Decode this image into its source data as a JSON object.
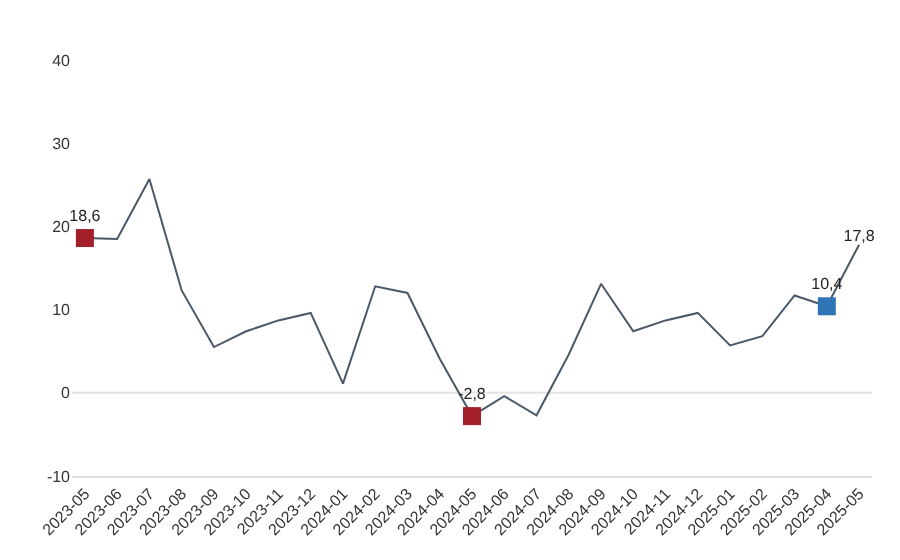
{
  "chart_data": {
    "type": "line",
    "categories": [
      "2023-05",
      "2023-06",
      "2023-07",
      "2023-08",
      "2023-09",
      "2023-10",
      "2023-11",
      "2023-12",
      "2024-01",
      "2024-02",
      "2024-03",
      "2024-04",
      "2024-05",
      "2024-06",
      "2024-07",
      "2024-08",
      "2024-09",
      "2024-10",
      "2024-11",
      "2024-12",
      "2025-01",
      "2025-02",
      "2025-03",
      "2025-04",
      "2025-05"
    ],
    "series": [
      {
        "color": "#4a5868",
        "marker": "none",
        "values": [
          18.6,
          18.5,
          25.7,
          12.3,
          5.5,
          7.4,
          8.7,
          9.6,
          1.1,
          12.8,
          12.0,
          4.1,
          -2.8,
          -0.4,
          -2.7,
          4.6,
          13.1,
          7.4,
          8.7,
          9.6,
          5.7,
          6.8,
          11.7,
          10.4,
          17.8
        ],
        "value_labels": [
          null,
          null,
          null,
          null,
          null,
          null,
          null,
          null,
          null,
          null,
          null,
          null,
          null,
          null,
          null,
          null,
          null,
          null,
          null,
          null,
          null,
          null,
          null,
          null,
          "17,8"
        ]
      },
      {
        "type": "scatter",
        "marker": "square",
        "values": [
          18.6,
          null,
          null,
          null,
          null,
          null,
          null,
          null,
          null,
          null,
          null,
          null,
          -2.8,
          null,
          null,
          null,
          null,
          null,
          null,
          null,
          null,
          null,
          null,
          10.4,
          null
        ],
        "colors": [
          "#a3202a",
          null,
          null,
          null,
          null,
          null,
          null,
          null,
          null,
          null,
          null,
          null,
          "#a3202a",
          null,
          null,
          null,
          null,
          null,
          null,
          null,
          null,
          null,
          null,
          "#2e75b6",
          null
        ],
        "value_labels": [
          "18,6",
          null,
          null,
          null,
          null,
          null,
          null,
          null,
          null,
          null,
          null,
          null,
          "-2,8",
          null,
          null,
          null,
          null,
          null,
          null,
          null,
          null,
          null,
          null,
          "10,4",
          null
        ]
      }
    ],
    "ylim": [
      -10,
      40
    ],
    "yticks": [
      -10,
      0,
      10,
      20,
      30,
      40
    ],
    "grid": false,
    "line_style": "solid",
    "ref_lines": [
      {
        "axis": "y",
        "value": 0,
        "color": "#e4e4e4"
      }
    ]
  }
}
